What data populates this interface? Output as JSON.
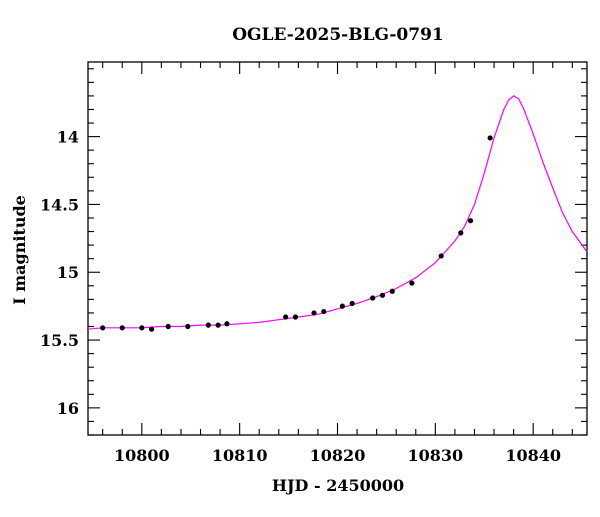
{
  "chart_data": {
    "type": "scatter",
    "title": "OGLE-2025-BLG-0791",
    "xlabel": "HJD - 2450000",
    "ylabel": "I magnitude",
    "xlim": [
      10794.5,
      10845.5
    ],
    "ylim": [
      16.2,
      13.45
    ],
    "y_inverted": true,
    "x_ticks": [
      10800,
      10810,
      10820,
      10830,
      10840
    ],
    "y_ticks": [
      14,
      14.5,
      15,
      15.5,
      16
    ],
    "y_tick_labels": [
      "14",
      "14.5",
      "15",
      "15.5",
      "16"
    ],
    "x_minor_step": 2,
    "y_minor_step": 0.1,
    "grid": false,
    "series": [
      {
        "kind": "points",
        "color": "#000000",
        "x": [
          10796,
          10798,
          10800,
          10801,
          10802.7,
          10804.7,
          10806.8,
          10807.8,
          10808.7,
          10814.7,
          10815.7,
          10817.6,
          10818.6,
          10820.5,
          10821.5,
          10823.6,
          10824.6,
          10825.6,
          10827.6,
          10830.6,
          10832.6,
          10833.6,
          10835.6
        ],
        "y": [
          15.41,
          15.41,
          15.41,
          15.42,
          15.4,
          15.4,
          15.39,
          15.39,
          15.38,
          15.33,
          15.33,
          15.3,
          15.29,
          15.25,
          15.23,
          15.19,
          15.17,
          15.14,
          15.08,
          14.88,
          14.71,
          14.62,
          14.01
        ]
      },
      {
        "kind": "model",
        "color": "#ff00ff",
        "x": [
          10794.5,
          10796,
          10798,
          10800,
          10802,
          10804,
          10806,
          10808,
          10810,
          10812,
          10814,
          10816,
          10818,
          10820,
          10822,
          10824,
          10826,
          10828,
          10830,
          10832,
          10833,
          10834,
          10835,
          10836,
          10837,
          10837.5,
          10838,
          10838.5,
          10839,
          10840,
          10841,
          10842,
          10843,
          10844,
          10845.5
        ],
        "y": [
          15.42,
          15.41,
          15.41,
          15.41,
          15.4,
          15.4,
          15.39,
          15.39,
          15.38,
          15.37,
          15.35,
          15.33,
          15.31,
          15.27,
          15.23,
          15.18,
          15.12,
          15.04,
          14.93,
          14.77,
          14.66,
          14.5,
          14.27,
          14.01,
          13.8,
          13.73,
          13.7,
          13.72,
          13.79,
          13.98,
          14.19,
          14.38,
          14.56,
          14.7,
          14.85
        ]
      }
    ]
  }
}
